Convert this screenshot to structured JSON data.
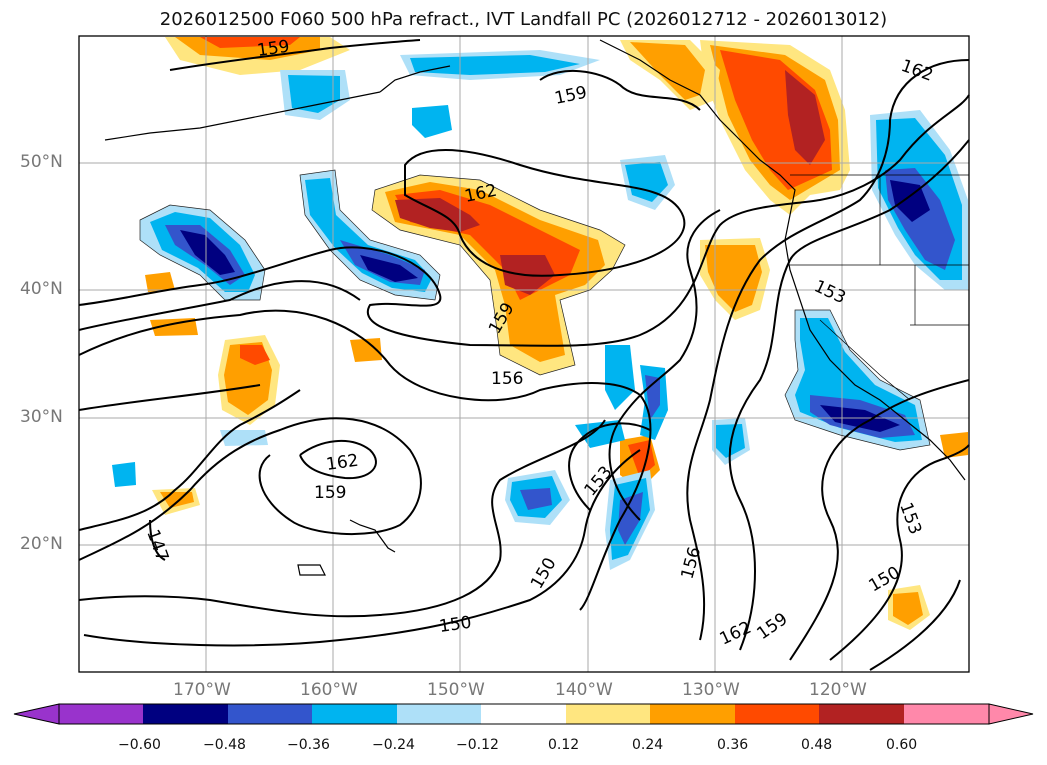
{
  "title": "2026012500 F060 500 hPa refract., IVT Landfall PC (2026012712 - 2026013012)",
  "lat_labels": [
    "50°N",
    "40°N",
    "30°N",
    "20°N"
  ],
  "lon_labels": [
    "170°W",
    "160°W",
    "150°W",
    "140°W",
    "130°W",
    "120°W"
  ],
  "contour_labels": [
    "159",
    "159",
    "162",
    "162",
    "159",
    "156",
    "153",
    "153",
    "162",
    "159",
    "147",
    "150",
    "156",
    "150",
    "162",
    "159",
    "153",
    "150"
  ],
  "colorbar": {
    "ticks": [
      "−0.60",
      "−0.48",
      "−0.36",
      "−0.24",
      "−0.12",
      "0.12",
      "0.24",
      "0.36",
      "0.48",
      "0.60"
    ],
    "colors": [
      "#9933cc",
      "#000080",
      "#3355cc",
      "#00b4f0",
      "#aee0f8",
      "#ffffff",
      "#ffe680",
      "#ff9f00",
      "#ff4a00",
      "#b22222",
      "#ff88aa"
    ]
  },
  "fill_colors": {
    "neg_light": "#aee0f8",
    "neg_mid": "#00b4f0",
    "neg_strong": "#3355cc",
    "neg_max": "#000080",
    "pos_light": "#ffe680",
    "pos_mid": "#ff9f00",
    "pos_strong": "#ff4a00",
    "pos_max": "#b22222",
    "pos_extreme": "#ff88aa"
  }
}
